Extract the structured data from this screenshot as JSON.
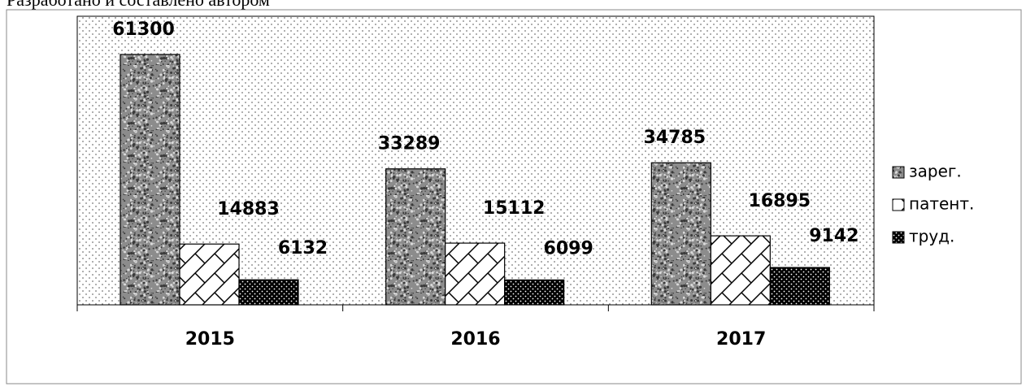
{
  "chart_data": {
    "type": "bar",
    "note": "Разработано и составлено автором",
    "categories": [
      "2015",
      "2016",
      "2017"
    ],
    "series": [
      {
        "name": "зарег.",
        "color": "#8c8c8c",
        "values": [
          61300,
          33289,
          34785
        ]
      },
      {
        "name": "патент.",
        "color": "#ffffff",
        "values": [
          14883,
          15112,
          16895
        ]
      },
      {
        "name": "труд.",
        "color": "#000000",
        "values": [
          6132,
          6099,
          9142
        ]
      }
    ],
    "legend": "right"
  }
}
